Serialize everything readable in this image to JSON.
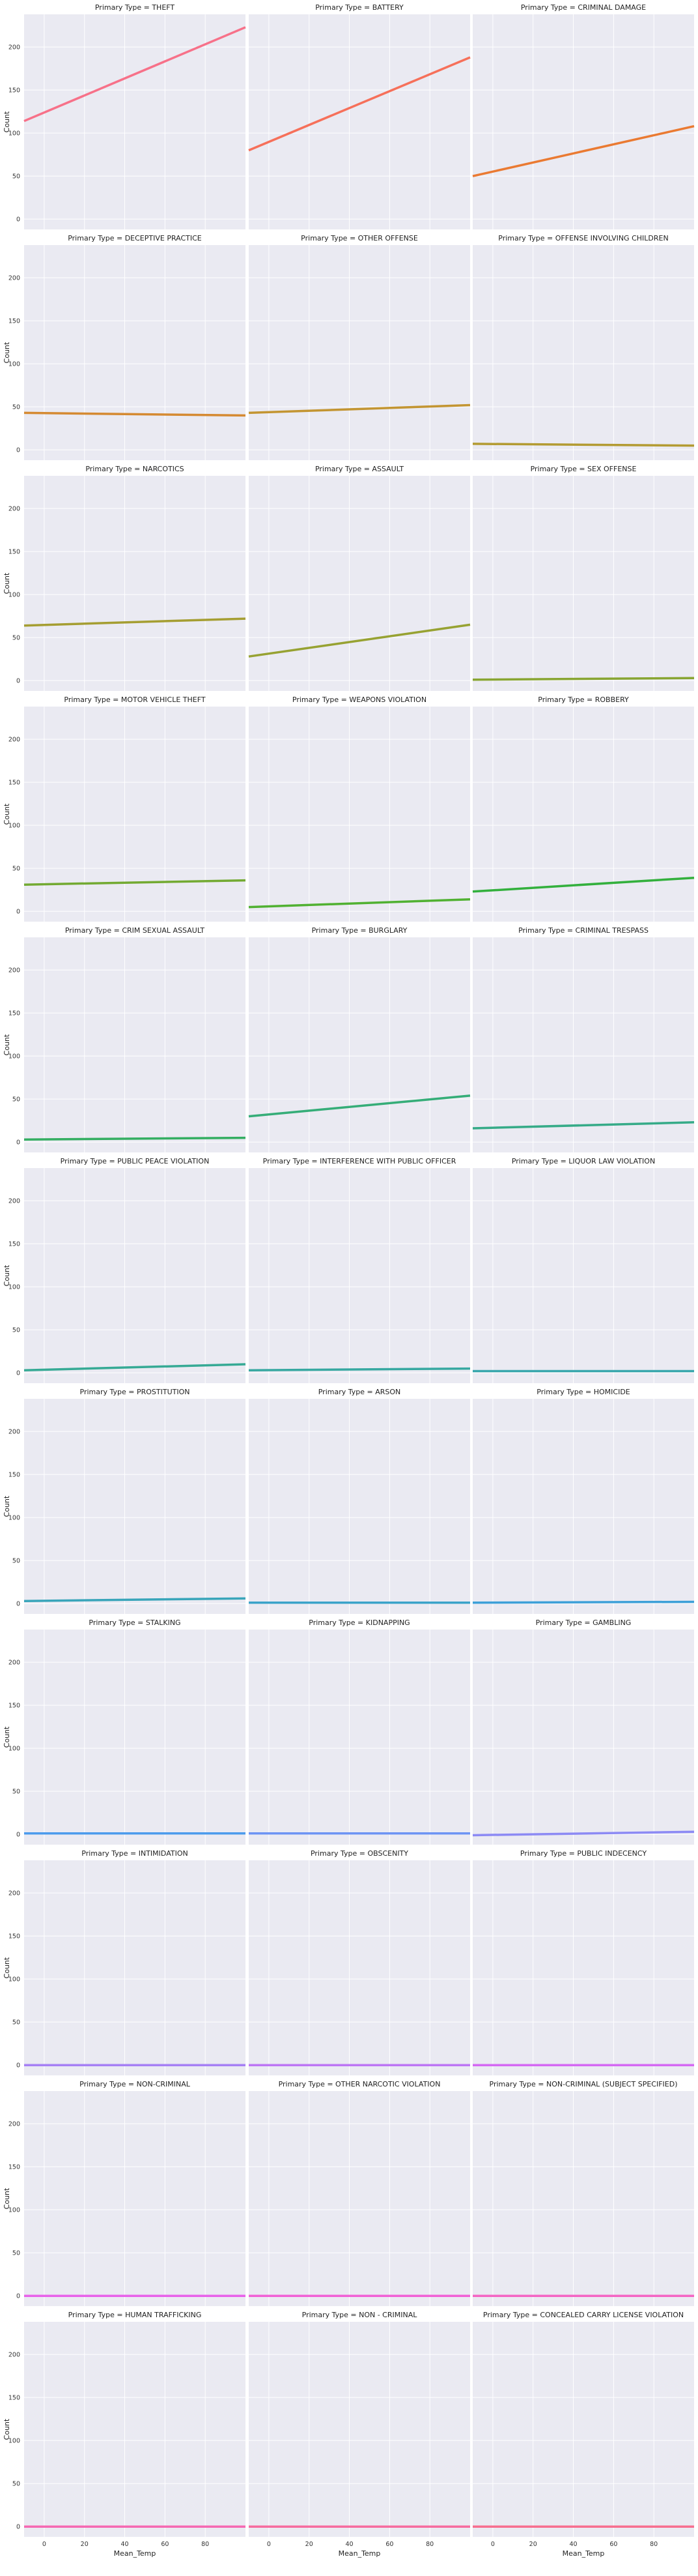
{
  "chart_data": {
    "type": "line",
    "facet_title_prefix": "Primary Type = ",
    "xlabel": "Mean_Temp",
    "ylabel": "Count",
    "xlim": [
      -10,
      100
    ],
    "ylim": [
      -12,
      238
    ],
    "x_ticks": [
      0,
      20,
      40,
      60,
      80
    ],
    "y_ticks": [
      0,
      50,
      100,
      150,
      200
    ],
    "grid": true,
    "series": [
      {
        "name": "THEFT",
        "x": [
          -10,
          100
        ],
        "y": [
          114,
          223
        ],
        "color": "#f77189"
      },
      {
        "name": "BATTERY",
        "x": [
          -10,
          100
        ],
        "y": [
          80,
          188
        ],
        "color": "#f6705a"
      },
      {
        "name": "CRIMINAL DAMAGE",
        "x": [
          -10,
          100
        ],
        "y": [
          50,
          108
        ],
        "color": "#ea7a32"
      },
      {
        "name": "DECEPTIVE PRACTICE",
        "x": [
          -10,
          100
        ],
        "y": [
          43,
          40
        ],
        "color": "#d58a32"
      },
      {
        "name": "OTHER OFFENSE",
        "x": [
          -10,
          100
        ],
        "y": [
          43,
          52
        ],
        "color": "#c39532"
      },
      {
        "name": "OFFENSE INVOLVING CHILDREN",
        "x": [
          -10,
          100
        ],
        "y": [
          7,
          5
        ],
        "color": "#b39b32"
      },
      {
        "name": "NARCOTICS",
        "x": [
          -10,
          100
        ],
        "y": [
          64,
          72
        ],
        "color": "#a59e32"
      },
      {
        "name": "ASSAULT",
        "x": [
          -10,
          100
        ],
        "y": [
          28,
          65
        ],
        "color": "#97a232"
      },
      {
        "name": "SEX OFFENSE",
        "x": [
          -10,
          100
        ],
        "y": [
          1,
          3
        ],
        "color": "#88a532"
      },
      {
        "name": "MOTOR VEHICLE THEFT",
        "x": [
          -10,
          100
        ],
        "y": [
          31,
          36
        ],
        "color": "#73aa32"
      },
      {
        "name": "WEAPONS VIOLATION",
        "x": [
          -10,
          100
        ],
        "y": [
          5,
          14
        ],
        "color": "#50b132"
      },
      {
        "name": "ROBBERY",
        "x": [
          -10,
          100
        ],
        "y": [
          23,
          39
        ],
        "color": "#33b03d"
      },
      {
        "name": "CRIM SEXUAL ASSAULT",
        "x": [
          -10,
          100
        ],
        "y": [
          3,
          5
        ],
        "color": "#34ae62"
      },
      {
        "name": "BURGLARY",
        "x": [
          -10,
          100
        ],
        "y": [
          30,
          54
        ],
        "color": "#35ad78"
      },
      {
        "name": "CRIMINAL TRESPASS",
        "x": [
          -10,
          100
        ],
        "y": [
          16,
          23
        ],
        "color": "#36ab88"
      },
      {
        "name": "PUBLIC PEACE VIOLATION",
        "x": [
          -10,
          100
        ],
        "y": [
          3,
          10
        ],
        "color": "#36aa95"
      },
      {
        "name": "INTERFERENCE WITH PUBLIC OFFICER",
        "x": [
          -10,
          100
        ],
        "y": [
          3,
          5
        ],
        "color": "#37a8a1"
      },
      {
        "name": "LIQUOR LAW VIOLATION",
        "x": [
          -10,
          100
        ],
        "y": [
          2,
          2
        ],
        "color": "#38a7ad"
      },
      {
        "name": "PROSTITUTION",
        "x": [
          -10,
          100
        ],
        "y": [
          3,
          6
        ],
        "color": "#39a5ba"
      },
      {
        "name": "ARSON",
        "x": [
          -10,
          100
        ],
        "y": [
          1,
          1
        ],
        "color": "#3ba3c9"
      },
      {
        "name": "HOMICIDE",
        "x": [
          -10,
          100
        ],
        "y": [
          1,
          2
        ],
        "color": "#3da0d8"
      },
      {
        "name": "STALKING",
        "x": [
          -10,
          100
        ],
        "y": [
          1,
          1
        ],
        "color": "#4c9bec"
      },
      {
        "name": "KIDNAPPING",
        "x": [
          -10,
          100
        ],
        "y": [
          1,
          1
        ],
        "color": "#6d94f4"
      },
      {
        "name": "GAMBLING",
        "x": [
          -10,
          100
        ],
        "y": [
          -1,
          3
        ],
        "color": "#8c8af4"
      },
      {
        "name": "INTIMIDATION",
        "x": [
          -10,
          100
        ],
        "y": [
          0,
          0
        ],
        "color": "#a681f4"
      },
      {
        "name": "OBSCENITY",
        "x": [
          -10,
          100
        ],
        "y": [
          0,
          0
        ],
        "color": "#bd76f4"
      },
      {
        "name": "PUBLIC INDECENCY",
        "x": [
          -10,
          100
        ],
        "y": [
          0,
          0
        ],
        "color": "#d469f3"
      },
      {
        "name": "NON-CRIMINAL",
        "x": [
          -10,
          100
        ],
        "y": [
          0,
          0
        ],
        "color": "#e862ea"
      },
      {
        "name": "OTHER NARCOTIC VIOLATION",
        "x": [
          -10,
          100
        ],
        "y": [
          0,
          0
        ],
        "color": "#f161d6"
      },
      {
        "name": "NON-CRIMINAL (SUBJECT SPECIFIED)",
        "x": [
          -10,
          100
        ],
        "y": [
          0,
          0
        ],
        "color": "#f465c4"
      },
      {
        "name": "HUMAN TRAFFICKING",
        "x": [
          -10,
          100
        ],
        "y": [
          0,
          0
        ],
        "color": "#f569b2"
      },
      {
        "name": "NON - CRIMINAL",
        "x": [
          -10,
          100
        ],
        "y": [
          0,
          0
        ],
        "color": "#f66c9f"
      },
      {
        "name": "CONCEALED CARRY LICENSE VIOLATION",
        "x": [
          -10,
          100
        ],
        "y": [
          0,
          0
        ],
        "color": "#f76e8f"
      }
    ]
  }
}
